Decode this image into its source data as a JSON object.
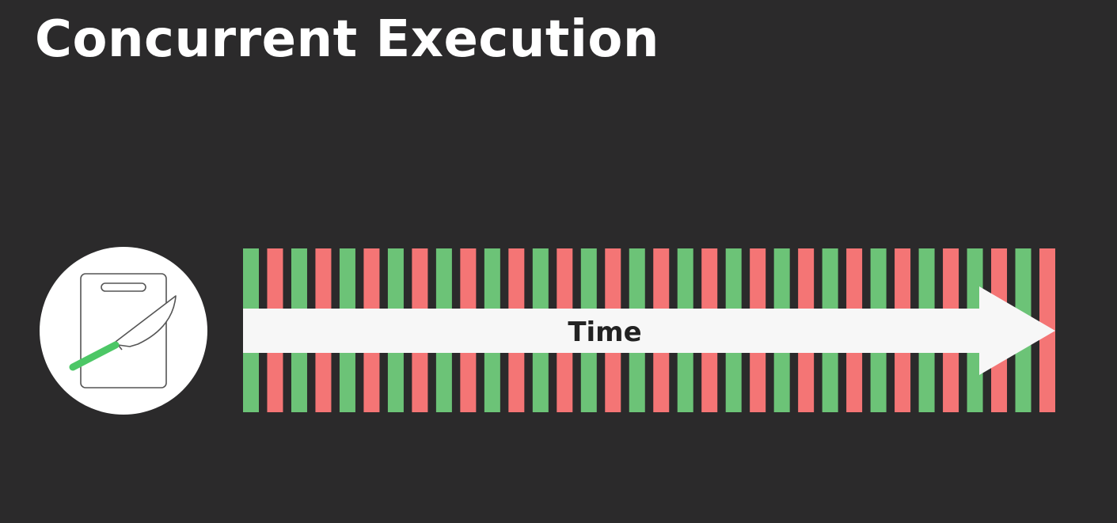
{
  "title": "Concurrent Execution",
  "task_icon": "cutting-board-knife-icon",
  "time_arrow_label": "Time",
  "task_slices": [
    "green",
    "red",
    "green",
    "red",
    "green",
    "red",
    "green",
    "red",
    "green",
    "red",
    "green",
    "red",
    "green",
    "red",
    "green",
    "red",
    "green",
    "red",
    "green",
    "red",
    "green",
    "red",
    "green",
    "red",
    "green",
    "red",
    "green",
    "red",
    "green",
    "red",
    "green",
    "red",
    "green",
    "red"
  ],
  "colors": {
    "background": "#2b2a2b",
    "green": "#6cc377",
    "red": "#f47575",
    "arrow": "#f7f7f7",
    "knife_handle": "#4cc766"
  }
}
